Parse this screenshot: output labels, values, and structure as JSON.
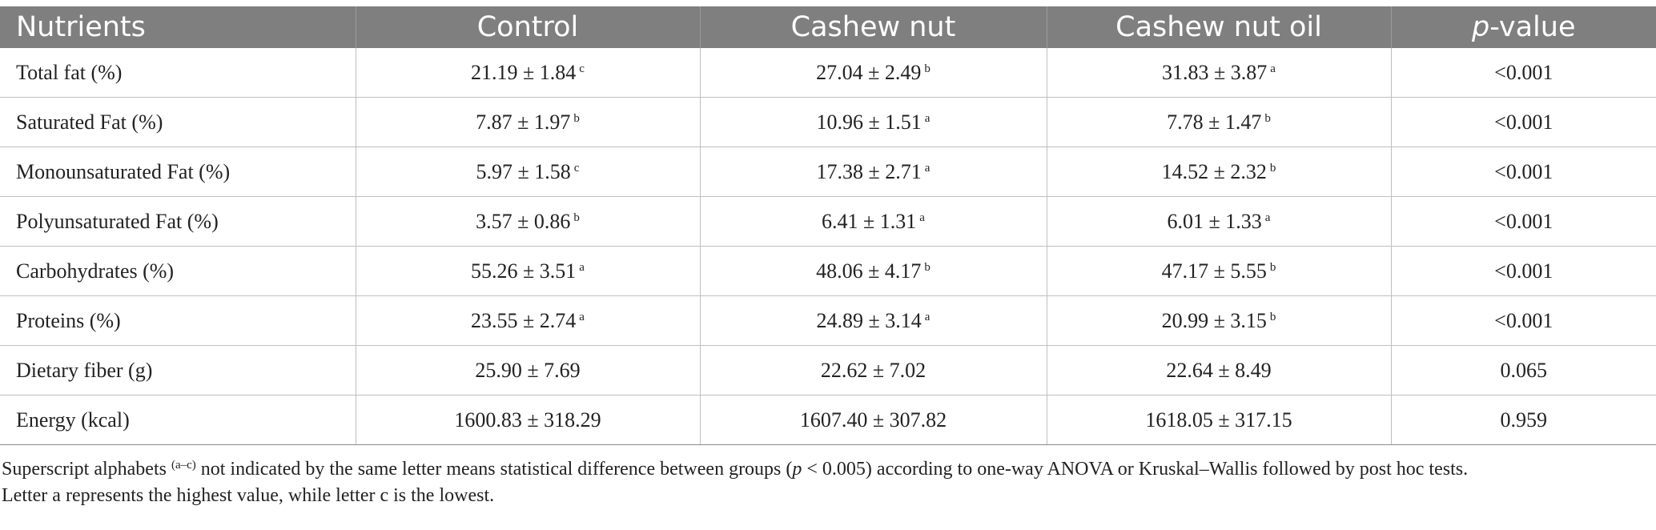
{
  "table": {
    "headers": {
      "nutrients": "Nutrients",
      "control": "Control",
      "cashew_nut": "Cashew nut",
      "cashew_nut_oil": "Cashew nut oil",
      "p_italic": "p",
      "p_rest": "-value"
    },
    "rows": [
      {
        "nutrient": "Total fat (%)",
        "control": "21.19 ± 1.84",
        "control_sup": "c",
        "cashew": "27.04 ± 2.49",
        "cashew_sup": "b",
        "oil": "31.83 ± 3.87",
        "oil_sup": "a",
        "p": "<0.001"
      },
      {
        "nutrient": "Saturated Fat (%)",
        "control": "7.87 ± 1.97",
        "control_sup": "b",
        "cashew": "10.96 ± 1.51",
        "cashew_sup": "a",
        "oil": "7.78 ± 1.47",
        "oil_sup": "b",
        "p": "<0.001"
      },
      {
        "nutrient": "Monounsaturated Fat (%)",
        "control": "5.97 ± 1.58",
        "control_sup": "c",
        "cashew": "17.38 ± 2.71",
        "cashew_sup": "a",
        "oil": "14.52 ± 2.32",
        "oil_sup": "b",
        "p": "<0.001"
      },
      {
        "nutrient": "Polyunsaturated Fat (%)",
        "control": "3.57 ± 0.86",
        "control_sup": "b",
        "cashew": "6.41 ± 1.31",
        "cashew_sup": "a",
        "oil": "6.01 ± 1.33",
        "oil_sup": "a",
        "p": "<0.001"
      },
      {
        "nutrient": "Carbohydrates (%)",
        "control": "55.26 ± 3.51",
        "control_sup": "a",
        "cashew": "48.06 ± 4.17",
        "cashew_sup": "b",
        "oil": "47.17 ± 5.55",
        "oil_sup": "b",
        "p": "<0.001"
      },
      {
        "nutrient": "Proteins (%)",
        "control": "23.55 ± 2.74",
        "control_sup": "a",
        "cashew": "24.89 ± 3.14",
        "cashew_sup": "a",
        "oil": "20.99 ± 3.15",
        "oil_sup": "b",
        "p": "<0.001"
      },
      {
        "nutrient": "Dietary fiber (g)",
        "control": "25.90 ± 7.69",
        "control_sup": "",
        "cashew": "22.62 ± 7.02",
        "cashew_sup": "",
        "oil": "22.64 ± 8.49",
        "oil_sup": "",
        "p": "0.065"
      },
      {
        "nutrient": "Energy (kcal)",
        "control": "1600.83 ± 318.29",
        "control_sup": "",
        "cashew": "1607.40 ± 307.82",
        "cashew_sup": "",
        "oil": "1618.05 ± 317.15",
        "oil_sup": "",
        "p": "0.959"
      }
    ]
  },
  "footnote": {
    "part1": "Superscript alphabets ",
    "sup": "(a–c)",
    "part2": " not indicated by the same letter means statistical difference between groups (",
    "p_italic": "p",
    "part3": " < 0.005) according to one-way ANOVA or Kruskal–Wallis followed by post hoc tests.",
    "line2": "Letter a represents the highest value, while letter c is the lowest."
  },
  "colors": {
    "header_bg": "#7f7f7f",
    "header_text": "#ffffff",
    "grid": "#bfbfbf"
  }
}
